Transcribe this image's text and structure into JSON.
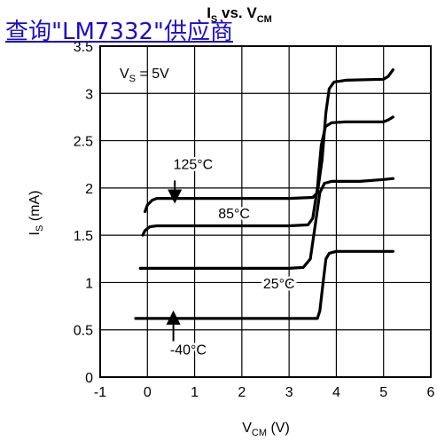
{
  "overlay_link": {
    "text": "查询\"LM7332\"供应商"
  },
  "chart_data": {
    "type": "line",
    "title": {
      "main": "I",
      "main_sub": "S",
      "mid": " vs. V",
      "mid_sub": "CM"
    },
    "xlabel": {
      "main": "V",
      "sub": "CM",
      "rest": " (V)"
    },
    "ylabel": {
      "main": "I",
      "sub": "S",
      "rest": " (mA)"
    },
    "xlim": [
      -1,
      6
    ],
    "ylim": [
      0,
      3.5
    ],
    "x_ticks": [
      "-1",
      "0",
      "1",
      "2",
      "3",
      "4",
      "5",
      "6"
    ],
    "y_ticks": [
      "0",
      "0.5",
      "1",
      "1.5",
      "2",
      "2.5",
      "3",
      "3.5"
    ],
    "grid": true,
    "legend": "none",
    "condition_label": {
      "main": "V",
      "sub": "S",
      "rest": " = 5V"
    },
    "series": [
      {
        "name": "125°C",
        "points": [
          [
            -0.05,
            1.75
          ],
          [
            0.0,
            1.82
          ],
          [
            0.1,
            1.87
          ],
          [
            0.2,
            1.89
          ],
          [
            1.0,
            1.89
          ],
          [
            3.0,
            1.89
          ],
          [
            3.5,
            1.9
          ],
          [
            3.6,
            1.95
          ],
          [
            3.7,
            2.3
          ],
          [
            3.78,
            2.8
          ],
          [
            3.85,
            3.05
          ],
          [
            3.95,
            3.12
          ],
          [
            4.2,
            3.14
          ],
          [
            5.0,
            3.15
          ],
          [
            5.1,
            3.18
          ],
          [
            5.2,
            3.25
          ]
        ]
      },
      {
        "name": "85°C",
        "points": [
          [
            -0.1,
            1.5
          ],
          [
            -0.05,
            1.55
          ],
          [
            0.05,
            1.59
          ],
          [
            0.2,
            1.6
          ],
          [
            1.0,
            1.6
          ],
          [
            3.0,
            1.6
          ],
          [
            3.4,
            1.61
          ],
          [
            3.5,
            1.68
          ],
          [
            3.6,
            2.0
          ],
          [
            3.68,
            2.45
          ],
          [
            3.77,
            2.65
          ],
          [
            3.9,
            2.69
          ],
          [
            4.2,
            2.7
          ],
          [
            5.0,
            2.7
          ],
          [
            5.1,
            2.72
          ],
          [
            5.2,
            2.75
          ]
        ]
      },
      {
        "name": "25°C",
        "points": [
          [
            -0.15,
            1.15
          ],
          [
            0.0,
            1.15
          ],
          [
            1.0,
            1.15
          ],
          [
            3.0,
            1.15
          ],
          [
            3.3,
            1.16
          ],
          [
            3.45,
            1.25
          ],
          [
            3.55,
            1.6
          ],
          [
            3.65,
            1.95
          ],
          [
            3.75,
            2.05
          ],
          [
            3.9,
            2.07
          ],
          [
            4.5,
            2.07
          ],
          [
            5.0,
            2.09
          ],
          [
            5.2,
            2.1
          ]
        ]
      },
      {
        "name": "-40°C",
        "points": [
          [
            -0.25,
            0.62
          ],
          [
            0.0,
            0.62
          ],
          [
            1.0,
            0.62
          ],
          [
            3.0,
            0.62
          ],
          [
            3.6,
            0.62
          ],
          [
            3.65,
            0.7
          ],
          [
            3.72,
            1.0
          ],
          [
            3.78,
            1.25
          ],
          [
            3.85,
            1.31
          ],
          [
            4.0,
            1.33
          ],
          [
            5.2,
            1.33
          ]
        ]
      }
    ],
    "annotations": [
      {
        "text": "125°C",
        "x": 0.55,
        "y": 2.2,
        "arrow_from": [
          0.58,
          2.08
        ],
        "arrow_to": [
          0.58,
          1.91
        ]
      },
      {
        "text": "85°C",
        "x": 1.5,
        "y": 1.68
      },
      {
        "text": "25°C",
        "x": 2.45,
        "y": 0.94
      },
      {
        "text": "-40°C",
        "x": 0.48,
        "y": 0.24,
        "arrow_from": [
          0.55,
          0.38
        ],
        "arrow_to": [
          0.55,
          0.63
        ]
      }
    ]
  }
}
